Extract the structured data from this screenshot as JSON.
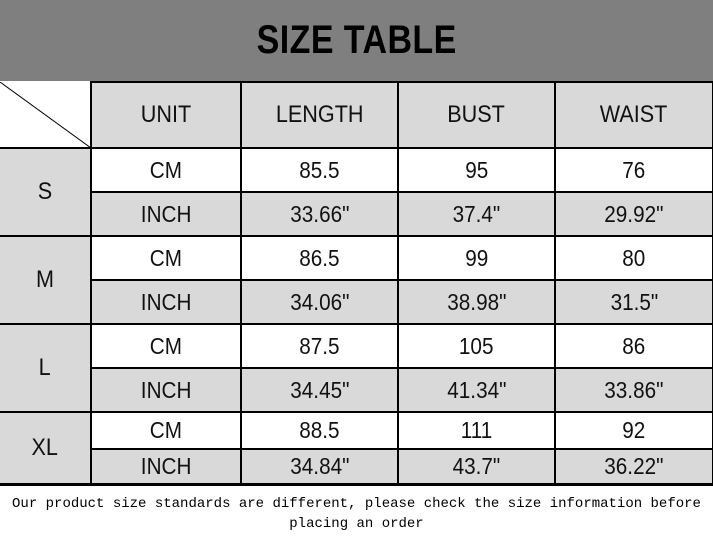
{
  "title": "SIZE TABLE",
  "headers": [
    "UNIT",
    "LENGTH",
    "BUST",
    "WAIST"
  ],
  "sizes": [
    {
      "size": "S",
      "rows": [
        [
          "CM",
          "85.5",
          "95",
          "76"
        ],
        [
          "INCH",
          "33.66\"",
          "37.4\"",
          "29.92\""
        ]
      ]
    },
    {
      "size": "M",
      "rows": [
        [
          "CM",
          "86.5",
          "99",
          "80"
        ],
        [
          "INCH",
          "34.06\"",
          "38.98\"",
          "31.5\""
        ]
      ]
    },
    {
      "size": "L",
      "rows": [
        [
          "CM",
          "87.5",
          "105",
          "86"
        ],
        [
          "INCH",
          "34.45\"",
          "41.34\"",
          "33.86\""
        ]
      ]
    },
    {
      "size": "XL",
      "rows": [
        [
          "CM",
          "88.5",
          "111",
          "92"
        ],
        [
          "INCH",
          "34.84\"",
          "43.7\"",
          "36.22\""
        ]
      ]
    }
  ],
  "note": "Our product size standards are different, please check the size information before placing an order",
  "colors": {
    "title_bg": "#7f7f7f",
    "header_bg": "#d9d9d9",
    "inch_row_bg": "#d9d9d9",
    "cm_row_bg": "#ffffff"
  }
}
